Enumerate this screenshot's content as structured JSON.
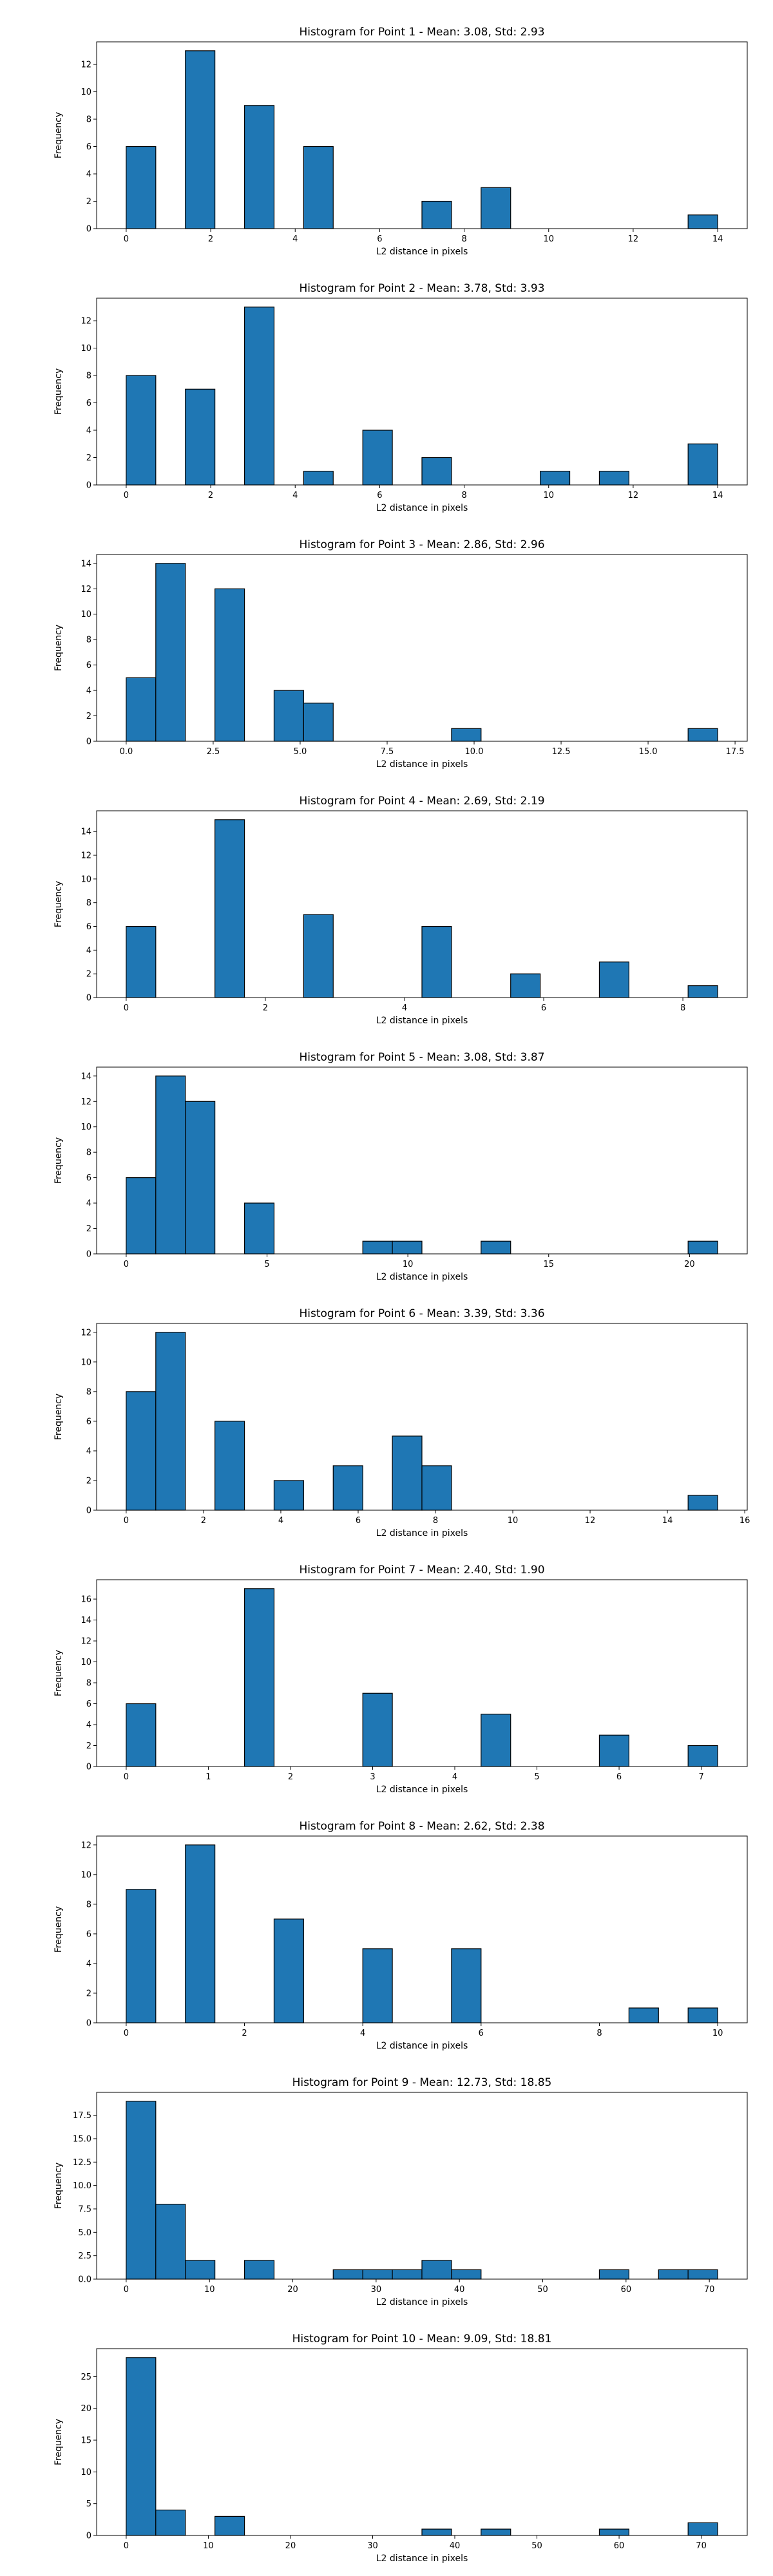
{
  "chart_data": [
    {
      "type": "bar",
      "title": "Histogram for Point 1 - Mean: 3.08, Std: 2.93",
      "xlabel": "L2 distance in pixels",
      "ylabel": "Frequency",
      "xlim": [
        -0.7,
        14.7
      ],
      "ylim": [
        0,
        13.65
      ],
      "xticks": [
        0,
        2,
        4,
        6,
        8,
        10,
        12,
        14
      ],
      "xtick_labels": [
        "0",
        "2",
        "4",
        "6",
        "8",
        "10",
        "12",
        "14"
      ],
      "yticks": [
        0,
        2,
        4,
        6,
        8,
        10,
        12
      ],
      "ytick_labels": [
        "0",
        "2",
        "4",
        "6",
        "8",
        "10",
        "12"
      ],
      "bins": [
        {
          "start": 0.0,
          "end": 0.7,
          "count": 6
        },
        {
          "start": 1.4,
          "end": 2.1,
          "count": 13
        },
        {
          "start": 2.8,
          "end": 3.5,
          "count": 9
        },
        {
          "start": 4.2,
          "end": 4.9,
          "count": 6
        },
        {
          "start": 7.0,
          "end": 7.7,
          "count": 2
        },
        {
          "start": 8.4,
          "end": 9.1,
          "count": 3
        },
        {
          "start": 13.3,
          "end": 14.0,
          "count": 1
        }
      ]
    },
    {
      "type": "bar",
      "title": "Histogram for Point 2 - Mean: 3.78, Std: 3.93",
      "xlabel": "L2 distance in pixels",
      "ylabel": "Frequency",
      "xlim": [
        -0.7,
        14.7
      ],
      "ylim": [
        0,
        13.65
      ],
      "xticks": [
        0,
        2,
        4,
        6,
        8,
        10,
        12,
        14
      ],
      "xtick_labels": [
        "0",
        "2",
        "4",
        "6",
        "8",
        "10",
        "12",
        "14"
      ],
      "yticks": [
        0,
        2,
        4,
        6,
        8,
        10,
        12
      ],
      "ytick_labels": [
        "0",
        "2",
        "4",
        "6",
        "8",
        "10",
        "12"
      ],
      "bins": [
        {
          "start": 0.0,
          "end": 0.7,
          "count": 8
        },
        {
          "start": 1.4,
          "end": 2.1,
          "count": 7
        },
        {
          "start": 2.8,
          "end": 3.5,
          "count": 13
        },
        {
          "start": 4.2,
          "end": 4.9,
          "count": 1
        },
        {
          "start": 5.6,
          "end": 6.3,
          "count": 4
        },
        {
          "start": 7.0,
          "end": 7.7,
          "count": 2
        },
        {
          "start": 9.8,
          "end": 10.5,
          "count": 1
        },
        {
          "start": 11.2,
          "end": 11.9,
          "count": 1
        },
        {
          "start": 13.3,
          "end": 14.0,
          "count": 3
        }
      ]
    },
    {
      "type": "bar",
      "title": "Histogram for Point 3 - Mean: 2.86, Std: 2.96",
      "xlabel": "L2 distance in pixels",
      "ylabel": "Frequency",
      "xlim": [
        -0.85,
        17.85
      ],
      "ylim": [
        0,
        14.7
      ],
      "xticks": [
        0,
        2.5,
        5,
        7.5,
        10,
        12.5,
        15,
        17.5
      ],
      "xtick_labels": [
        "0.0",
        "2.5",
        "5.0",
        "7.5",
        "10.0",
        "12.5",
        "15.0",
        "17.5"
      ],
      "yticks": [
        0,
        2,
        4,
        6,
        8,
        10,
        12,
        14
      ],
      "ytick_labels": [
        "0",
        "2",
        "4",
        "6",
        "8",
        "10",
        "12",
        "14"
      ],
      "bins": [
        {
          "start": 0.0,
          "end": 0.85,
          "count": 5
        },
        {
          "start": 0.85,
          "end": 1.7,
          "count": 14
        },
        {
          "start": 2.55,
          "end": 3.4,
          "count": 12
        },
        {
          "start": 4.25,
          "end": 5.1,
          "count": 4
        },
        {
          "start": 5.1,
          "end": 5.95,
          "count": 3
        },
        {
          "start": 9.35,
          "end": 10.2,
          "count": 1
        },
        {
          "start": 16.15,
          "end": 17.0,
          "count": 1
        }
      ]
    },
    {
      "type": "bar",
      "title": "Histogram for Point 4 - Mean: 2.69, Std: 2.19",
      "xlabel": "L2 distance in pixels",
      "ylabel": "Frequency",
      "xlim": [
        -0.425,
        8.925
      ],
      "ylim": [
        0,
        15.75
      ],
      "xticks": [
        0,
        2,
        4,
        6,
        8
      ],
      "xtick_labels": [
        "0",
        "2",
        "4",
        "6",
        "8"
      ],
      "yticks": [
        0,
        2,
        4,
        6,
        8,
        10,
        12,
        14
      ],
      "ytick_labels": [
        "0",
        "2",
        "4",
        "6",
        "8",
        "10",
        "12",
        "14"
      ],
      "bins": [
        {
          "start": 0.0,
          "end": 0.425,
          "count": 6
        },
        {
          "start": 1.275,
          "end": 1.7,
          "count": 15
        },
        {
          "start": 2.55,
          "end": 2.975,
          "count": 7
        },
        {
          "start": 4.25,
          "end": 4.675,
          "count": 6
        },
        {
          "start": 5.525,
          "end": 5.95,
          "count": 2
        },
        {
          "start": 6.8,
          "end": 7.225,
          "count": 3
        },
        {
          "start": 8.075,
          "end": 8.5,
          "count": 1
        }
      ]
    },
    {
      "type": "bar",
      "title": "Histogram for Point 5 - Mean: 3.08, Std: 3.87",
      "xlabel": "L2 distance in pixels",
      "ylabel": "Frequency",
      "xlim": [
        -1.05,
        22.05
      ],
      "ylim": [
        0,
        14.7
      ],
      "xticks": [
        0,
        5,
        10,
        15,
        20
      ],
      "xtick_labels": [
        "0",
        "5",
        "10",
        "15",
        "20"
      ],
      "yticks": [
        0,
        2,
        4,
        6,
        8,
        10,
        12,
        14
      ],
      "ytick_labels": [
        "0",
        "2",
        "4",
        "6",
        "8",
        "10",
        "12",
        "14"
      ],
      "bins": [
        {
          "start": 0.0,
          "end": 1.05,
          "count": 6
        },
        {
          "start": 1.05,
          "end": 2.1,
          "count": 14
        },
        {
          "start": 2.1,
          "end": 3.15,
          "count": 12
        },
        {
          "start": 4.2,
          "end": 5.25,
          "count": 4
        },
        {
          "start": 8.4,
          "end": 9.45,
          "count": 1
        },
        {
          "start": 9.45,
          "end": 10.5,
          "count": 1
        },
        {
          "start": 12.6,
          "end": 13.65,
          "count": 1
        },
        {
          "start": 19.95,
          "end": 21.0,
          "count": 1
        }
      ]
    },
    {
      "type": "bar",
      "title": "Histogram for Point 6 - Mean: 3.39, Std: 3.36",
      "xlabel": "L2 distance in pixels",
      "ylabel": "Frequency",
      "xlim": [
        -0.765,
        16.065
      ],
      "ylim": [
        0,
        12.6
      ],
      "xticks": [
        0,
        2,
        4,
        6,
        8,
        10,
        12,
        14,
        16
      ],
      "xtick_labels": [
        "0",
        "2",
        "4",
        "6",
        "8",
        "10",
        "12",
        "14",
        "16"
      ],
      "yticks": [
        0,
        2,
        4,
        6,
        8,
        10,
        12
      ],
      "ytick_labels": [
        "0",
        "2",
        "4",
        "6",
        "8",
        "10",
        "12"
      ],
      "bins": [
        {
          "start": 0.0,
          "end": 0.765,
          "count": 8
        },
        {
          "start": 0.765,
          "end": 1.53,
          "count": 12
        },
        {
          "start": 2.295,
          "end": 3.06,
          "count": 6
        },
        {
          "start": 3.825,
          "end": 4.59,
          "count": 2
        },
        {
          "start": 5.355,
          "end": 6.12,
          "count": 3
        },
        {
          "start": 6.885,
          "end": 7.65,
          "count": 5
        },
        {
          "start": 7.65,
          "end": 8.415,
          "count": 3
        },
        {
          "start": 14.535,
          "end": 15.3,
          "count": 1
        }
      ]
    },
    {
      "type": "bar",
      "title": "Histogram for Point 7 - Mean: 2.40, Std: 1.90",
      "xlabel": "L2 distance in pixels",
      "ylabel": "Frequency",
      "xlim": [
        -0.36,
        7.56
      ],
      "ylim": [
        0,
        17.85
      ],
      "xticks": [
        0,
        1,
        2,
        3,
        4,
        5,
        6,
        7
      ],
      "xtick_labels": [
        "0",
        "1",
        "2",
        "3",
        "4",
        "5",
        "6",
        "7"
      ],
      "yticks": [
        0,
        2,
        4,
        6,
        8,
        10,
        12,
        14,
        16
      ],
      "ytick_labels": [
        "0",
        "2",
        "4",
        "6",
        "8",
        "10",
        "12",
        "14",
        "16"
      ],
      "bins": [
        {
          "start": 0.0,
          "end": 0.36,
          "count": 6
        },
        {
          "start": 1.44,
          "end": 1.8,
          "count": 17
        },
        {
          "start": 2.88,
          "end": 3.24,
          "count": 7
        },
        {
          "start": 4.32,
          "end": 4.68,
          "count": 5
        },
        {
          "start": 5.76,
          "end": 6.12,
          "count": 3
        },
        {
          "start": 6.84,
          "end": 7.2,
          "count": 2
        }
      ]
    },
    {
      "type": "bar",
      "title": "Histogram for Point 8 - Mean: 2.62, Std: 2.38",
      "xlabel": "L2 distance in pixels",
      "ylabel": "Frequency",
      "xlim": [
        -0.5,
        10.5
      ],
      "ylim": [
        0,
        12.6
      ],
      "xticks": [
        0,
        2,
        4,
        6,
        8,
        10
      ],
      "xtick_labels": [
        "0",
        "2",
        "4",
        "6",
        "8",
        "10"
      ],
      "yticks": [
        0,
        2,
        4,
        6,
        8,
        10,
        12
      ],
      "ytick_labels": [
        "0",
        "2",
        "4",
        "6",
        "8",
        "10",
        "12"
      ],
      "bins": [
        {
          "start": 0.0,
          "end": 0.5,
          "count": 9
        },
        {
          "start": 1.0,
          "end": 1.5,
          "count": 12
        },
        {
          "start": 2.5,
          "end": 3.0,
          "count": 7
        },
        {
          "start": 4.0,
          "end": 4.5,
          "count": 5
        },
        {
          "start": 5.5,
          "end": 6.0,
          "count": 5
        },
        {
          "start": 8.5,
          "end": 9.0,
          "count": 1
        },
        {
          "start": 9.5,
          "end": 10.0,
          "count": 1
        }
      ]
    },
    {
      "type": "bar",
      "title": "Histogram for Point 9 - Mean: 12.73, Std: 18.85",
      "xlabel": "L2 distance in pixels",
      "ylabel": "Frequency",
      "xlim": [
        -3.55,
        74.55
      ],
      "ylim": [
        0,
        19.95
      ],
      "xticks": [
        0,
        10,
        20,
        30,
        40,
        50,
        60,
        70
      ],
      "xtick_labels": [
        "0",
        "10",
        "20",
        "30",
        "40",
        "50",
        "60",
        "70"
      ],
      "yticks": [
        0,
        2.5,
        5,
        7.5,
        10,
        12.5,
        15,
        17.5
      ],
      "ytick_labels": [
        "0.0",
        "2.5",
        "5.0",
        "7.5",
        "10.0",
        "12.5",
        "15.0",
        "17.5"
      ],
      "bins": [
        {
          "start": 0.0,
          "end": 3.55,
          "count": 19
        },
        {
          "start": 3.55,
          "end": 7.1,
          "count": 8
        },
        {
          "start": 7.1,
          "end": 10.65,
          "count": 2
        },
        {
          "start": 14.2,
          "end": 17.75,
          "count": 2
        },
        {
          "start": 24.85,
          "end": 28.4,
          "count": 1
        },
        {
          "start": 28.4,
          "end": 31.95,
          "count": 1
        },
        {
          "start": 31.95,
          "end": 35.5,
          "count": 1
        },
        {
          "start": 35.5,
          "end": 39.05,
          "count": 2
        },
        {
          "start": 39.05,
          "end": 42.6,
          "count": 1
        },
        {
          "start": 56.8,
          "end": 60.35,
          "count": 1
        },
        {
          "start": 63.9,
          "end": 67.45,
          "count": 1
        },
        {
          "start": 67.45,
          "end": 71.0,
          "count": 1
        }
      ]
    },
    {
      "type": "bar",
      "title": "Histogram for Point 10 - Mean: 9.09, Std: 18.81",
      "xlabel": "L2 distance in pixels",
      "ylabel": "Frequency",
      "xlim": [
        -3.6,
        75.6
      ],
      "ylim": [
        0,
        29.4
      ],
      "xticks": [
        0,
        10,
        20,
        30,
        40,
        50,
        60,
        70
      ],
      "xtick_labels": [
        "0",
        "10",
        "20",
        "30",
        "40",
        "50",
        "60",
        "70"
      ],
      "yticks": [
        0,
        5,
        10,
        15,
        20,
        25
      ],
      "ytick_labels": [
        "0",
        "5",
        "10",
        "15",
        "20",
        "25"
      ],
      "bins": [
        {
          "start": 0.0,
          "end": 3.6,
          "count": 28
        },
        {
          "start": 3.6,
          "end": 7.2,
          "count": 4
        },
        {
          "start": 10.8,
          "end": 14.4,
          "count": 3
        },
        {
          "start": 36.0,
          "end": 39.6,
          "count": 1
        },
        {
          "start": 43.2,
          "end": 46.8,
          "count": 1
        },
        {
          "start": 57.6,
          "end": 61.2,
          "count": 1
        },
        {
          "start": 68.4,
          "end": 72.0,
          "count": 2
        }
      ]
    }
  ],
  "colors": {
    "bar_fill": "#1f77b4",
    "bar_edge": "#000000",
    "axis": "#000000"
  }
}
